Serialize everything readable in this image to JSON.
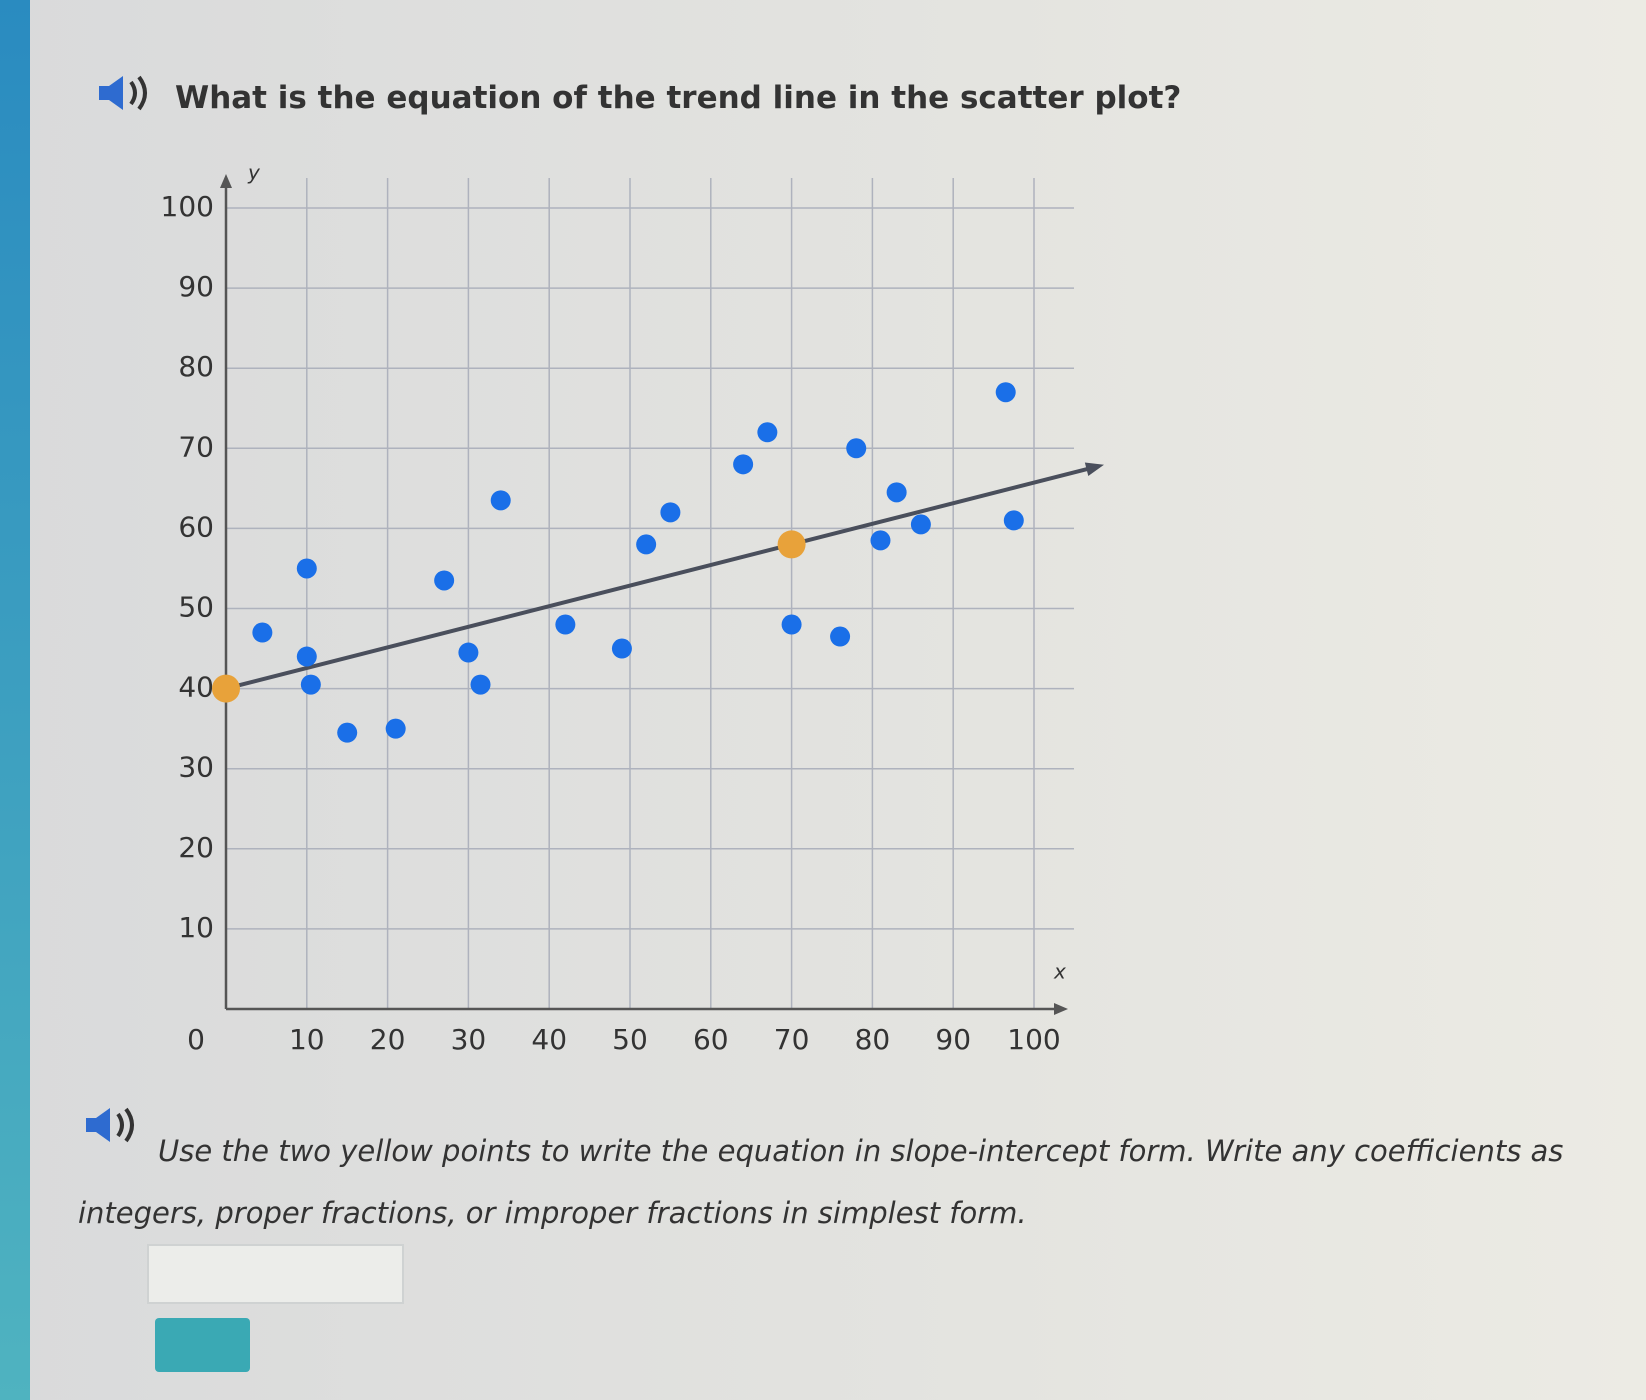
{
  "question": "What is the equation of the trend line in the scatter plot?",
  "instruction": "Use the two yellow points to write the equation in slope-intercept form. Write any coefficients as integers, proper fractions, or improper fractions in simplest form.",
  "chart_data": {
    "type": "scatter",
    "x_label": "x",
    "y_label": "y",
    "x": [
      4.5,
      10,
      10,
      10.5,
      15,
      21,
      27,
      30,
      31.5,
      34,
      42,
      49,
      52,
      55,
      64,
      67,
      70,
      76,
      78,
      81,
      83,
      86,
      96.5,
      97.5
    ],
    "y": [
      47,
      55,
      44,
      40.5,
      34.5,
      35,
      53.5,
      44.5,
      40.5,
      63.5,
      48,
      45,
      58,
      62,
      68,
      72,
      48,
      46.5,
      70,
      58.5,
      64.5,
      60.5,
      77,
      61
    ],
    "color": "#1a6fe8",
    "highlight_points": {
      "x": [
        0,
        70
      ],
      "y": [
        40,
        58
      ],
      "color": "#e8a23a"
    },
    "trend_line_color": "#4a4f5c",
    "xlim": [
      0,
      100
    ],
    "ylim": [
      0,
      100
    ],
    "xticks": [
      0,
      10,
      20,
      30,
      40,
      50,
      60,
      70,
      80,
      90,
      100
    ],
    "yticks": [
      10,
      20,
      30,
      40,
      50,
      60,
      70,
      80,
      90,
      100
    ],
    "grid": true
  }
}
